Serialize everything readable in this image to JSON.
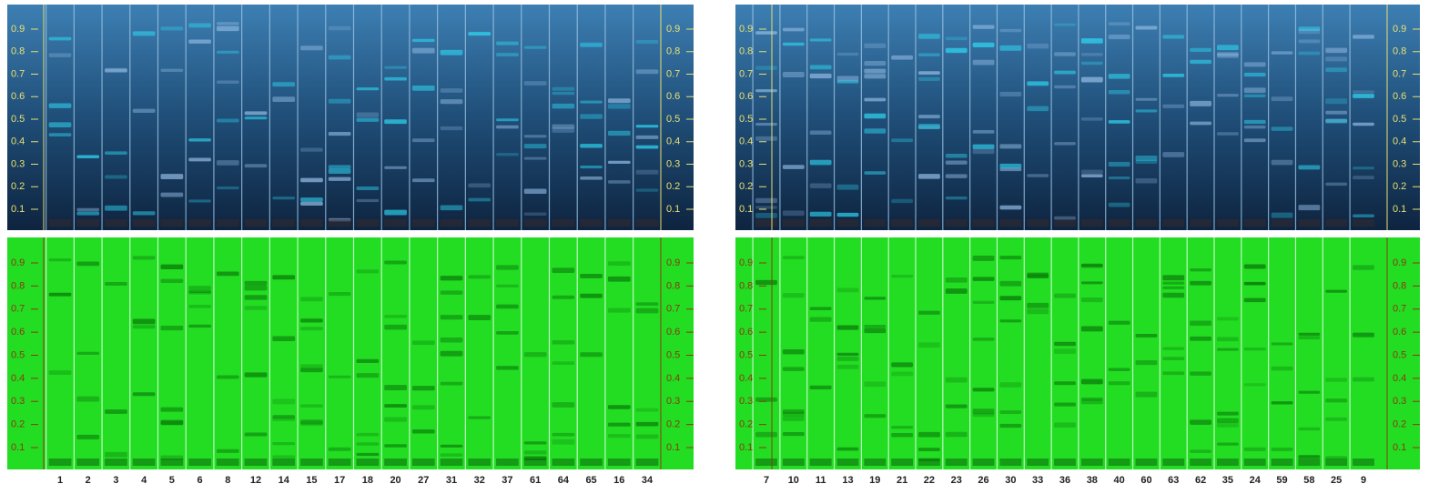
{
  "rf_scale": [
    0.9,
    0.8,
    0.7,
    0.6,
    0.5,
    0.4,
    0.3,
    0.2,
    0.1
  ],
  "panels": [
    {
      "lanes": [
        "1",
        "2",
        "3",
        "4",
        "5",
        "6",
        "8",
        "12",
        "14",
        "15",
        "17",
        "18",
        "20",
        "27",
        "31",
        "32",
        "37",
        "61",
        "64",
        "65",
        "16",
        "34"
      ]
    },
    {
      "lanes": [
        "7",
        "10",
        "11",
        "13",
        "19",
        "21",
        "22",
        "23",
        "26",
        "30",
        "33",
        "36",
        "38",
        "40",
        "60",
        "63",
        "62",
        "35",
        "24",
        "59",
        "58",
        "25",
        "9"
      ]
    }
  ]
}
